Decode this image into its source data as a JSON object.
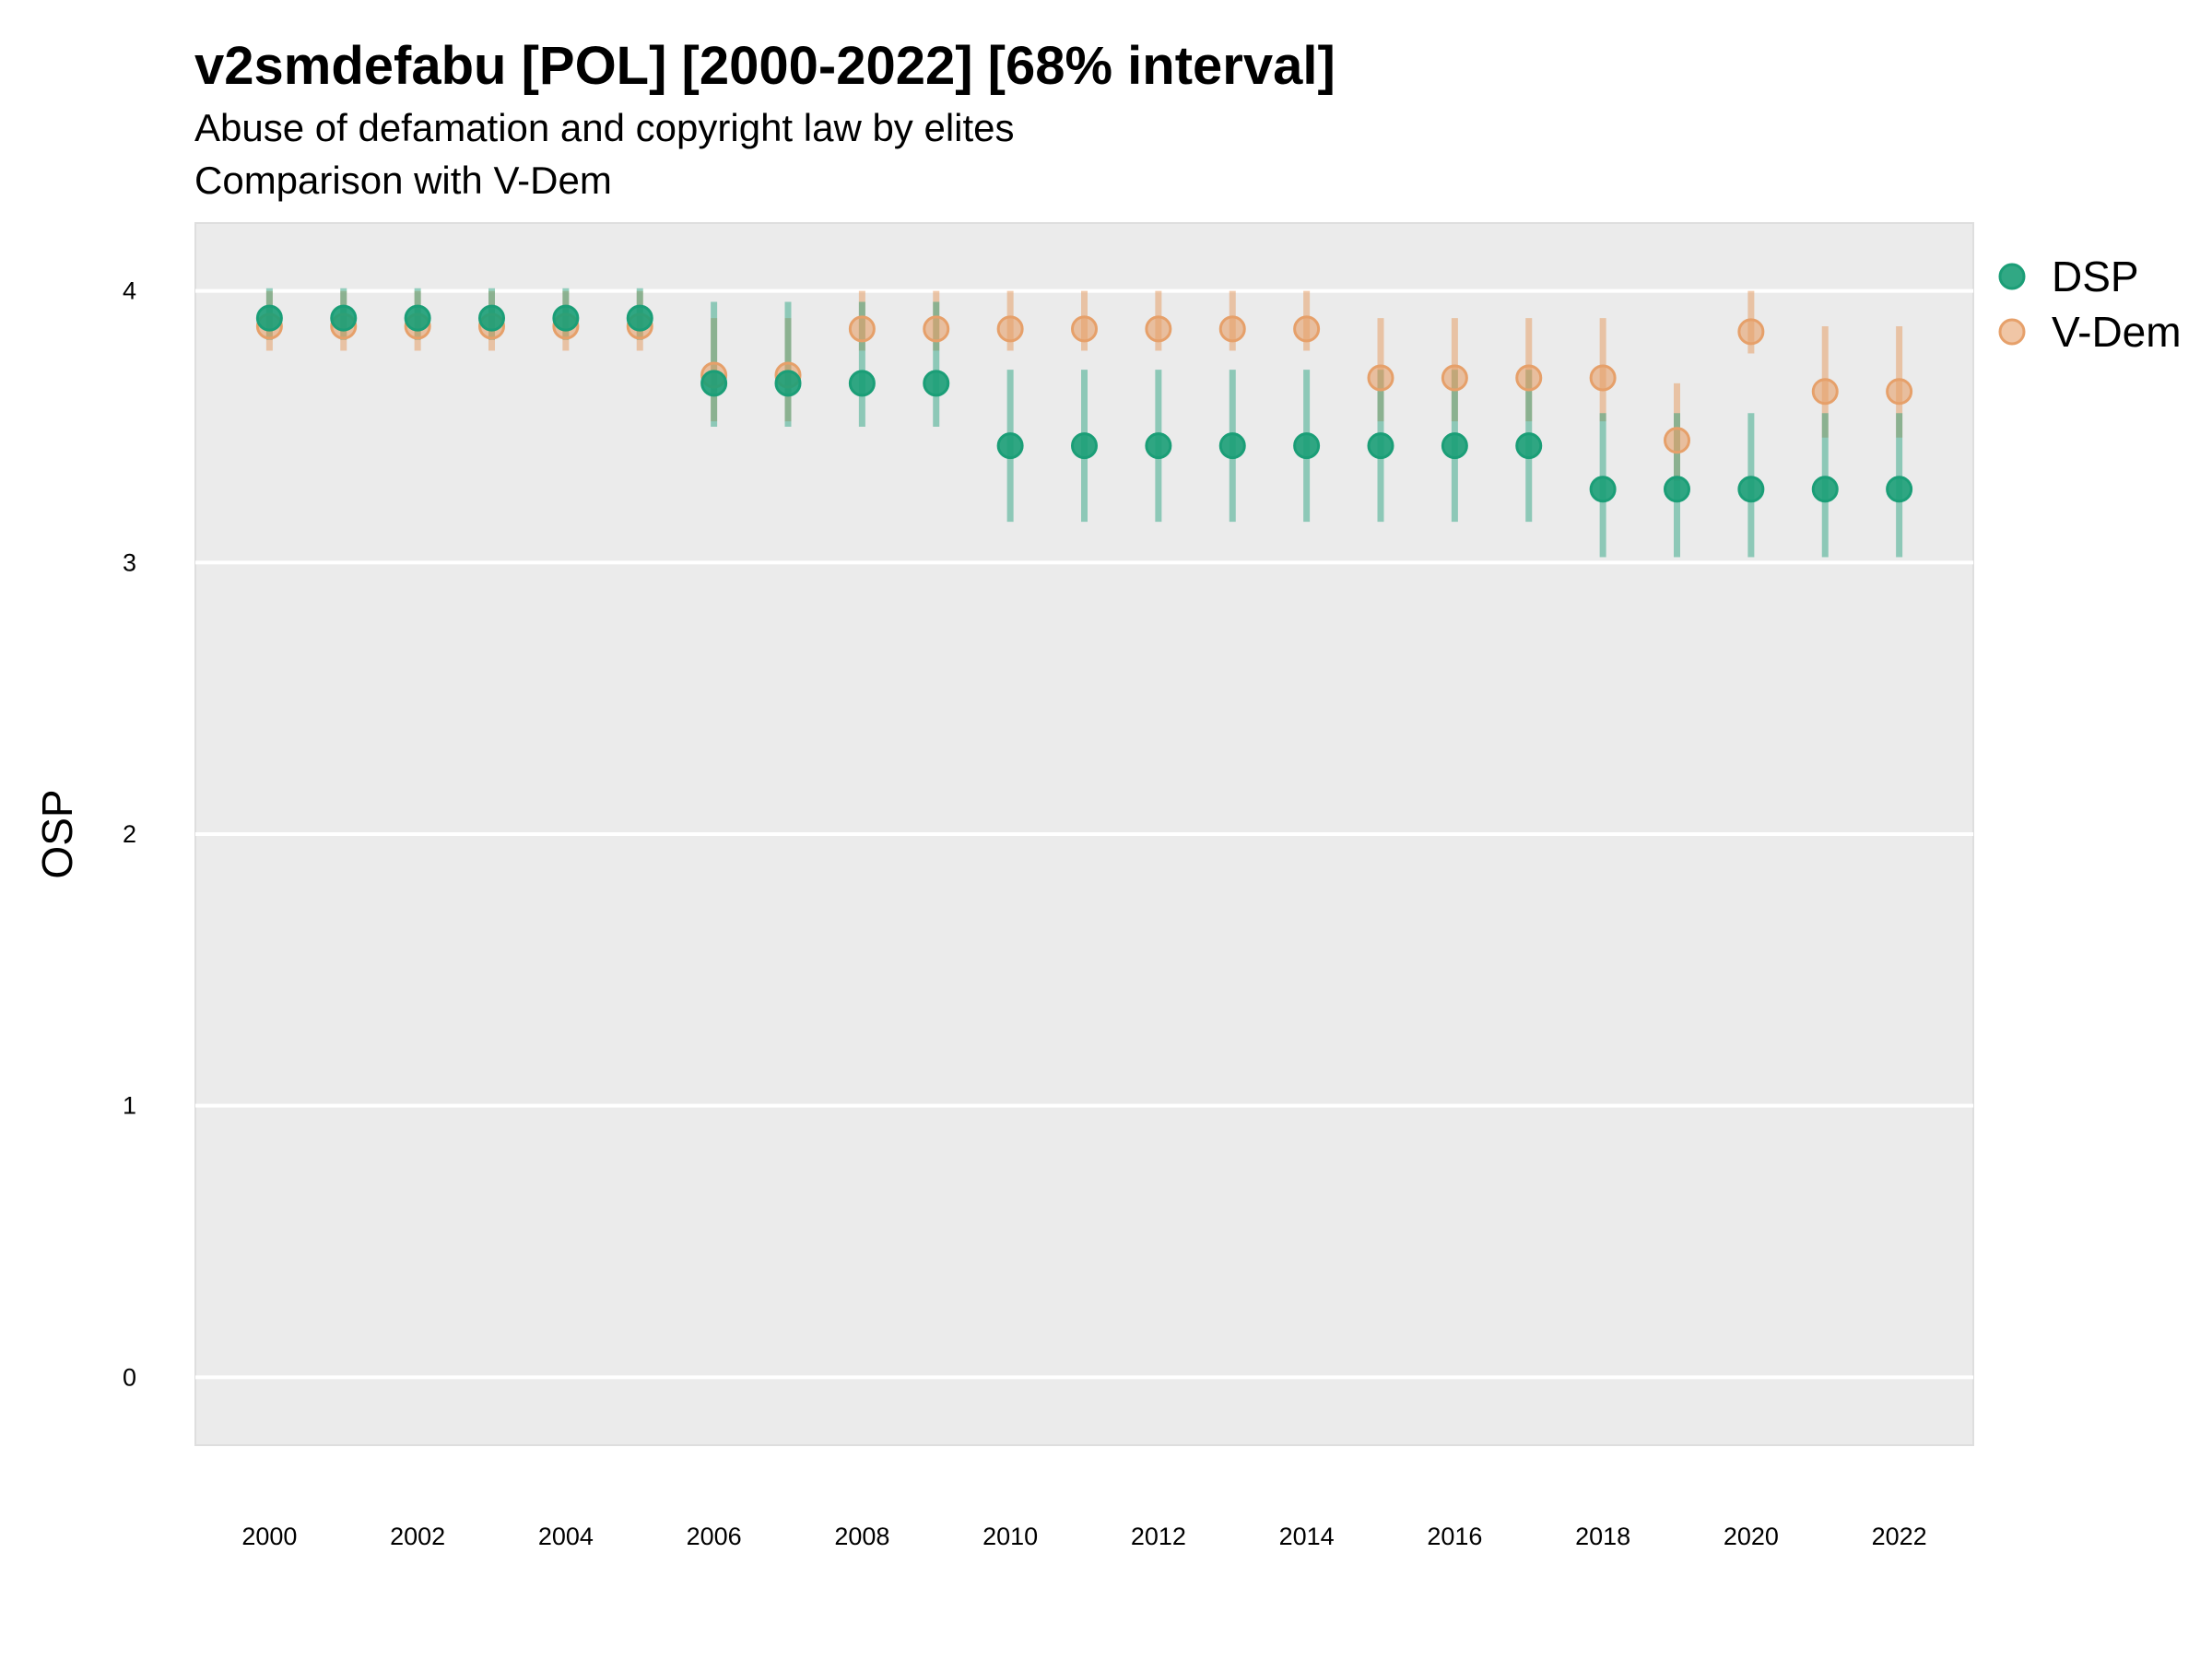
{
  "title": "v2smdefabu [POL] [2000-2022] [68% interval]",
  "subtitle": "Abuse of defamation and copyright law by elites",
  "subtitle2": "Comparison with V-Dem",
  "chart_data": {
    "type": "scatter",
    "title": "v2smdefabu [POL] [2000-2022] [68% interval]",
    "subtitle": "Abuse of defamation and copyright law by elites",
    "caption": "Comparison with V-Dem",
    "xlabel": "",
    "ylabel": "OSP",
    "xlim": [
      1999.0,
      2023.0
    ],
    "ylim": [
      -0.25,
      4.25
    ],
    "x_ticks": [
      2000,
      2002,
      2004,
      2006,
      2008,
      2010,
      2012,
      2014,
      2016,
      2018,
      2020,
      2022
    ],
    "y_ticks": [
      0,
      1,
      2,
      3,
      4
    ],
    "grid": true,
    "legend_position": "right",
    "x": [
      2000,
      2001,
      2002,
      2003,
      2004,
      2005,
      2006,
      2007,
      2008,
      2009,
      2010,
      2011,
      2012,
      2013,
      2014,
      2015,
      2016,
      2017,
      2018,
      2019,
      2020,
      2021,
      2022
    ],
    "series": [
      {
        "name": "DSP",
        "color": "#1b9e77",
        "values": [
          3.9,
          3.9,
          3.9,
          3.9,
          3.9,
          3.9,
          3.66,
          3.66,
          3.66,
          3.66,
          3.43,
          3.43,
          3.43,
          3.43,
          3.43,
          3.43,
          3.43,
          3.43,
          3.27,
          3.27,
          3.27,
          3.27,
          3.27
        ],
        "lower": [
          3.82,
          3.82,
          3.82,
          3.82,
          3.82,
          3.82,
          3.5,
          3.5,
          3.5,
          3.5,
          3.15,
          3.15,
          3.15,
          3.15,
          3.15,
          3.15,
          3.15,
          3.15,
          3.02,
          3.02,
          3.02,
          3.02,
          3.02
        ],
        "upper": [
          4.01,
          4.01,
          4.01,
          4.01,
          4.01,
          4.01,
          3.96,
          3.96,
          3.96,
          3.96,
          3.71,
          3.71,
          3.71,
          3.71,
          3.71,
          3.71,
          3.71,
          3.71,
          3.55,
          3.55,
          3.55,
          3.55,
          3.55
        ]
      },
      {
        "name": "V-Dem",
        "color": "#e6a06a",
        "values": [
          3.87,
          3.87,
          3.87,
          3.87,
          3.87,
          3.87,
          3.69,
          3.69,
          3.86,
          3.86,
          3.86,
          3.86,
          3.86,
          3.86,
          3.86,
          3.68,
          3.68,
          3.68,
          3.68,
          3.45,
          3.85,
          3.63,
          3.63
        ],
        "lower": [
          3.78,
          3.78,
          3.78,
          3.78,
          3.78,
          3.78,
          3.52,
          3.52,
          3.78,
          3.78,
          3.78,
          3.78,
          3.78,
          3.78,
          3.78,
          3.52,
          3.52,
          3.52,
          3.52,
          3.3,
          3.77,
          3.46,
          3.46
        ],
        "upper": [
          4.0,
          4.0,
          4.0,
          4.0,
          4.0,
          4.0,
          3.9,
          3.9,
          4.0,
          4.0,
          4.0,
          4.0,
          4.0,
          4.0,
          4.0,
          3.9,
          3.9,
          3.9,
          3.9,
          3.66,
          4.0,
          3.87,
          3.87
        ]
      }
    ]
  }
}
